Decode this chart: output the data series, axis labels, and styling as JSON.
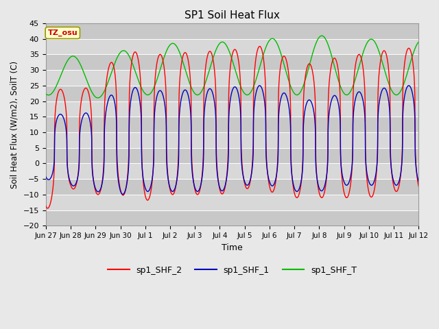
{
  "title": "SP1 Soil Heat Flux",
  "xlabel": "Time",
  "ylabel": "Soil Heat Flux (W/m2), SoilT (C)",
  "ylim": [
    -20,
    45
  ],
  "yticks": [
    -20,
    -15,
    -10,
    -5,
    0,
    5,
    10,
    15,
    20,
    25,
    30,
    35,
    40,
    45
  ],
  "fig_width": 6.4,
  "fig_height": 4.8,
  "fig_dpi": 100,
  "background_color": "#e8e8e8",
  "plot_bg_color": "#d3d3d3",
  "band_colors": [
    "#c8c8c8",
    "#d8d8d8"
  ],
  "tz_label": "TZ_osu",
  "tz_box_facecolor": "#ffffcc",
  "tz_text_color": "#cc0000",
  "tz_edge_color": "#999900",
  "legend_entries": [
    "sp1_SHF_2",
    "sp1_SHF_1",
    "sp1_SHF_T"
  ],
  "shf2_color": "#ff0000",
  "shf1_color": "#0000bb",
  "shft_color": "#00bb00",
  "grid_color": "#ffffff",
  "x_tick_labels": [
    "Jun 27",
    "Jun 28",
    "Jun 29",
    "Jun 30",
    "Jul 1",
    "Jul 2",
    "Jul 3",
    "Jul 4",
    "Jul 5",
    "Jul 6",
    "Jul 7",
    "Jul 8",
    "Jul 9",
    "Jul 10",
    "Jul 11",
    "Jul 12"
  ],
  "total_days": 15,
  "shf_period": 1.0,
  "shft_period": 2.0,
  "shf2_peak_vals": [
    25,
    23,
    25,
    37,
    35,
    35,
    36,
    36,
    37,
    38,
    32,
    32,
    35,
    35,
    37
  ],
  "shf2_trough_vals": [
    -15,
    -8,
    -10,
    -10,
    -12,
    -10,
    -10,
    -10,
    -8,
    -9,
    -11,
    -11,
    -11,
    -11,
    -9
  ],
  "shf1_peak_vals": [
    17,
    15,
    17,
    25,
    24,
    23,
    24,
    24,
    25,
    25,
    21,
    20,
    23,
    23,
    25
  ],
  "shf1_trough_vals": [
    -5,
    -7,
    -9,
    -10,
    -9,
    -9,
    -9,
    -9,
    -7,
    -7,
    -9,
    -9,
    -7,
    -7,
    -7
  ],
  "shft_peak_vals": [
    35,
    34,
    38,
    39,
    39,
    41,
    41,
    39,
    40,
    40,
    39,
    40,
    41
  ],
  "shft_trough_vals": [
    22,
    21,
    22,
    22,
    22,
    22,
    22,
    22,
    22,
    22,
    22,
    22,
    22
  ],
  "shf2_peak_phase": 0.35,
  "shf1_peak_phase": 0.35,
  "shft_peak_phase": 0.3,
  "sharpness": 3.0
}
